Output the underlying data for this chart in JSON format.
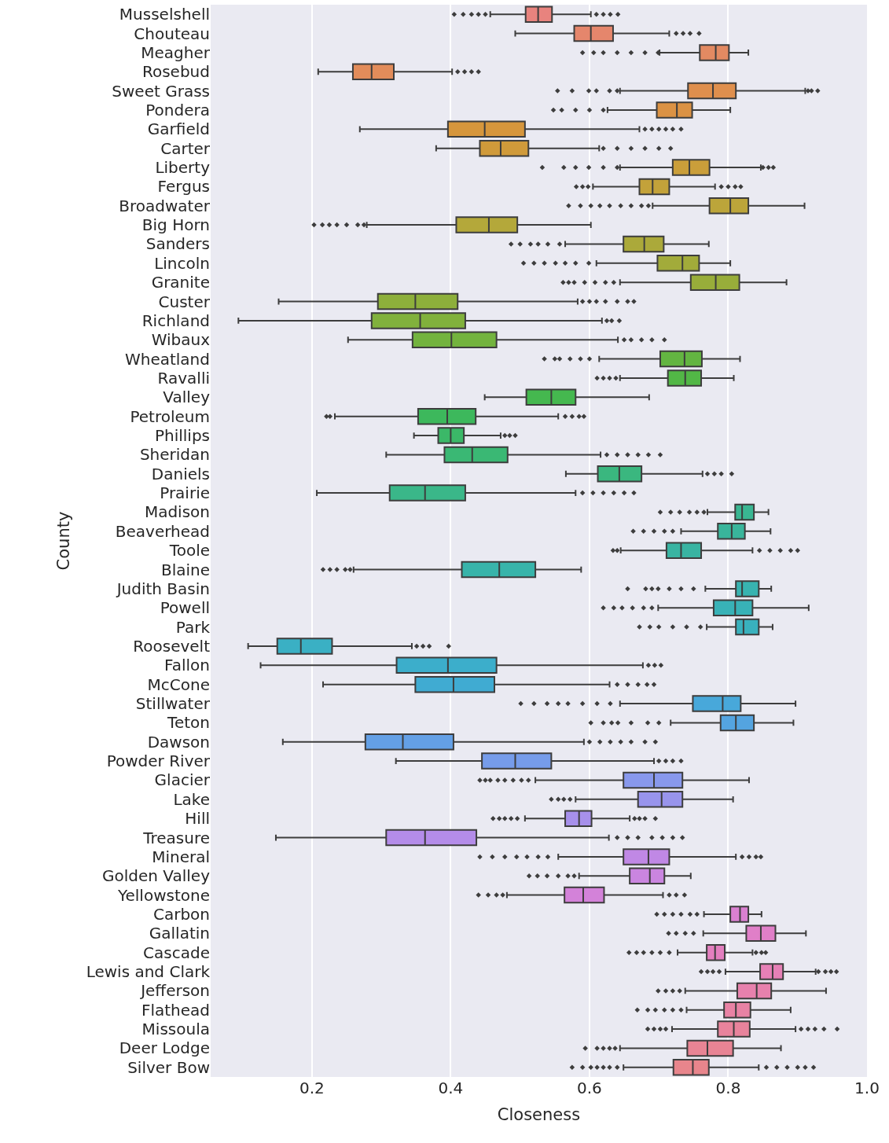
{
  "chart_data": {
    "type": "box",
    "orientation": "horizontal",
    "xlabel": "Closeness",
    "ylabel": "County",
    "categories": [
      "Musselshell",
      "Chouteau",
      "Meagher",
      "Rosebud",
      "Sweet Grass",
      "Pondera",
      "Garfield",
      "Carter",
      "Liberty",
      "Fergus",
      "Broadwater",
      "Big Horn",
      "Sanders",
      "Lincoln",
      "Granite",
      "Custer",
      "Richland",
      "Wibaux",
      "Wheatland",
      "Ravalli",
      "Valley",
      "Petroleum",
      "Phillips",
      "Sheridan",
      "Daniels",
      "Prairie",
      "Madison",
      "Beaverhead",
      "Toole",
      "Blaine",
      "Judith Basin",
      "Powell",
      "Park",
      "Roosevelt",
      "Fallon",
      "McCone",
      "Stillwater",
      "Teton",
      "Dawson",
      "Powder River",
      "Glacier",
      "Lake",
      "Hill",
      "Treasure",
      "Mineral",
      "Golden Valley",
      "Yellowstone",
      "Carbon",
      "Gallatin",
      "Cascade",
      "Lewis and Clark",
      "Jefferson",
      "Flathead",
      "Missoula",
      "Deer Lodge",
      "Silver Bow"
    ],
    "colors": [
      "#e8837e",
      "#e5866c",
      "#e38a62",
      "#e28c5a",
      "#df8f4d",
      "#db9244",
      "#d6963c",
      "#d09a3a",
      "#ca9e3a",
      "#c3a23a",
      "#bca53a",
      "#b4a83a",
      "#aba93a",
      "#a2ab3a",
      "#98ad3a",
      "#8daf3b",
      "#81b13c",
      "#73b33e",
      "#63b541",
      "#52b746",
      "#45b84f",
      "#3db85c",
      "#3bb868",
      "#3ab874",
      "#3ab77f",
      "#3ab789",
      "#39b692",
      "#39b59b",
      "#39b4a2",
      "#38b4aa",
      "#38b3b0",
      "#38b2b7",
      "#39b1bd",
      "#3ab0c4",
      "#3caecb",
      "#40abd2",
      "#48a8da",
      "#54a4e0",
      "#64a0e6",
      "#769cea",
      "#8898ec",
      "#9894ec",
      "#a790eb",
      "#b48ce9",
      "#c088e5",
      "#ca85e0",
      "#d382d9",
      "#da80d1",
      "#e07fc8",
      "#e37fbf",
      "#e680b6",
      "#e781ad",
      "#e882a4",
      "#e8839c",
      "#e88494",
      "#e8858c"
    ],
    "boxes": [
      {
        "low": 0.457,
        "q1": 0.508,
        "median": 0.526,
        "q3": 0.546,
        "high": 0.602,
        "outliers": [
          0.405,
          0.418,
          0.43,
          0.44,
          0.45,
          0.61,
          0.62,
          0.63,
          0.641
        ]
      },
      {
        "low": 0.493,
        "q1": 0.578,
        "median": 0.602,
        "q3": 0.634,
        "high": 0.715,
        "outliers": [
          0.725,
          0.735,
          0.745,
          0.758
        ]
      },
      {
        "low": 0.701,
        "q1": 0.759,
        "median": 0.782,
        "q3": 0.801,
        "high": 0.829,
        "outliers": [
          0.59,
          0.606,
          0.62,
          0.64,
          0.66,
          0.68,
          0.699
        ]
      },
      {
        "low": 0.209,
        "q1": 0.259,
        "median": 0.286,
        "q3": 0.318,
        "high": 0.402,
        "outliers": [
          0.41,
          0.42,
          0.43,
          0.44
        ]
      },
      {
        "low": 0.644,
        "q1": 0.742,
        "median": 0.778,
        "q3": 0.811,
        "high": 0.911,
        "outliers": [
          0.554,
          0.575,
          0.599,
          0.61,
          0.629,
          0.64,
          0.915,
          0.92,
          0.929
        ]
      },
      {
        "low": 0.626,
        "q1": 0.697,
        "median": 0.726,
        "q3": 0.748,
        "high": 0.803,
        "outliers": [
          0.548,
          0.56,
          0.58,
          0.6,
          0.62
        ]
      },
      {
        "low": 0.269,
        "q1": 0.396,
        "median": 0.449,
        "q3": 0.507,
        "high": 0.672,
        "outliers": [
          0.68,
          0.69,
          0.7,
          0.71,
          0.72,
          0.732
        ]
      },
      {
        "low": 0.379,
        "q1": 0.442,
        "median": 0.472,
        "q3": 0.512,
        "high": 0.614,
        "outliers": [
          0.62,
          0.64,
          0.66,
          0.68,
          0.7,
          0.717
        ]
      },
      {
        "low": 0.644,
        "q1": 0.72,
        "median": 0.744,
        "q3": 0.773,
        "high": 0.847,
        "outliers": [
          0.532,
          0.563,
          0.58,
          0.599,
          0.62,
          0.64,
          0.85,
          0.858,
          0.865
        ]
      },
      {
        "low": 0.605,
        "q1": 0.672,
        "median": 0.691,
        "q3": 0.715,
        "high": 0.781,
        "outliers": [
          0.581,
          0.59,
          0.598,
          0.79,
          0.8,
          0.81,
          0.818
        ]
      },
      {
        "low": 0.691,
        "q1": 0.773,
        "median": 0.803,
        "q3": 0.829,
        "high": 0.91,
        "outliers": [
          0.57,
          0.587,
          0.602,
          0.615,
          0.629,
          0.645,
          0.66,
          0.675,
          0.685
        ]
      },
      {
        "low": 0.279,
        "q1": 0.408,
        "median": 0.455,
        "q3": 0.496,
        "high": 0.602,
        "outliers": [
          0.203,
          0.215,
          0.225,
          0.236,
          0.25,
          0.266,
          0.275
        ]
      },
      {
        "low": 0.565,
        "q1": 0.649,
        "median": 0.679,
        "q3": 0.707,
        "high": 0.772,
        "outliers": [
          0.487,
          0.5,
          0.515,
          0.526,
          0.54,
          0.557
        ]
      },
      {
        "low": 0.61,
        "q1": 0.698,
        "median": 0.734,
        "q3": 0.758,
        "high": 0.803,
        "outliers": [
          0.505,
          0.52,
          0.535,
          0.551,
          0.565,
          0.58,
          0.599
        ]
      },
      {
        "low": 0.644,
        "q1": 0.746,
        "median": 0.782,
        "q3": 0.816,
        "high": 0.884,
        "outliers": [
          0.562,
          0.57,
          0.578,
          0.593,
          0.608,
          0.623,
          0.635
        ]
      },
      {
        "low": 0.152,
        "q1": 0.295,
        "median": 0.349,
        "q3": 0.41,
        "high": 0.583,
        "outliers": [
          0.59,
          0.6,
          0.61,
          0.623,
          0.64,
          0.655,
          0.664
        ]
      },
      {
        "low": 0.094,
        "q1": 0.286,
        "median": 0.356,
        "q3": 0.421,
        "high": 0.618,
        "outliers": [
          0.625,
          0.632,
          0.643
        ]
      },
      {
        "low": 0.252,
        "q1": 0.345,
        "median": 0.401,
        "q3": 0.466,
        "high": 0.641,
        "outliers": [
          0.65,
          0.66,
          0.675,
          0.69,
          0.708
        ]
      },
      {
        "low": 0.614,
        "q1": 0.702,
        "median": 0.737,
        "q3": 0.762,
        "high": 0.817,
        "outliers": [
          0.535,
          0.55,
          0.557,
          0.572,
          0.587,
          0.6
        ]
      },
      {
        "low": 0.644,
        "q1": 0.713,
        "median": 0.738,
        "q3": 0.761,
        "high": 0.808,
        "outliers": [
          0.611,
          0.62,
          0.629,
          0.638
        ]
      },
      {
        "low": 0.449,
        "q1": 0.509,
        "median": 0.545,
        "q3": 0.58,
        "high": 0.686
      },
      {
        "low": 0.233,
        "q1": 0.353,
        "median": 0.395,
        "q3": 0.436,
        "high": 0.555,
        "outliers": [
          0.221,
          0.226,
          0.565,
          0.575,
          0.585,
          0.592
        ]
      },
      {
        "low": 0.347,
        "q1": 0.382,
        "median": 0.4,
        "q3": 0.419,
        "high": 0.472,
        "outliers": [
          0.478,
          0.485,
          0.493
        ]
      },
      {
        "low": 0.307,
        "q1": 0.391,
        "median": 0.431,
        "q3": 0.482,
        "high": 0.616,
        "outliers": [
          0.625,
          0.64,
          0.655,
          0.67,
          0.685,
          0.702
        ]
      },
      {
        "low": 0.566,
        "q1": 0.612,
        "median": 0.643,
        "q3": 0.675,
        "high": 0.763,
        "outliers": [
          0.77,
          0.78,
          0.79,
          0.805
        ]
      },
      {
        "low": 0.207,
        "q1": 0.312,
        "median": 0.363,
        "q3": 0.421,
        "high": 0.58,
        "outliers": [
          0.59,
          0.605,
          0.62,
          0.635,
          0.65,
          0.664
        ]
      },
      {
        "low": 0.77,
        "q1": 0.81,
        "median": 0.82,
        "q3": 0.837,
        "high": 0.858,
        "outliers": [
          0.702,
          0.717,
          0.73,
          0.744,
          0.755,
          0.765
        ]
      },
      {
        "low": 0.732,
        "q1": 0.785,
        "median": 0.805,
        "q3": 0.824,
        "high": 0.861,
        "outliers": [
          0.663,
          0.678,
          0.693,
          0.708,
          0.72
        ]
      },
      {
        "low": 0.645,
        "q1": 0.711,
        "median": 0.732,
        "q3": 0.761,
        "high": 0.835,
        "outliers": [
          0.634,
          0.64,
          0.845,
          0.86,
          0.875,
          0.89,
          0.9
        ]
      },
      {
        "low": 0.26,
        "q1": 0.416,
        "median": 0.47,
        "q3": 0.522,
        "high": 0.588,
        "outliers": [
          0.216,
          0.226,
          0.236,
          0.248,
          0.255
        ]
      },
      {
        "low": 0.767,
        "q1": 0.811,
        "median": 0.82,
        "q3": 0.844,
        "high": 0.862,
        "outliers": [
          0.655,
          0.681,
          0.69,
          0.699,
          0.715,
          0.732,
          0.75
        ]
      },
      {
        "low": 0.699,
        "q1": 0.779,
        "median": 0.81,
        "q3": 0.835,
        "high": 0.916,
        "outliers": [
          0.62,
          0.635,
          0.647,
          0.662,
          0.678,
          0.69
        ]
      },
      {
        "low": 0.769,
        "q1": 0.811,
        "median": 0.822,
        "q3": 0.844,
        "high": 0.864,
        "outliers": [
          0.672,
          0.687,
          0.7,
          0.72,
          0.74,
          0.76
        ]
      },
      {
        "low": 0.108,
        "q1": 0.15,
        "median": 0.184,
        "q3": 0.229,
        "high": 0.344,
        "outliers": [
          0.351,
          0.36,
          0.369,
          0.397
        ]
      },
      {
        "low": 0.126,
        "q1": 0.322,
        "median": 0.396,
        "q3": 0.466,
        "high": 0.677,
        "outliers": [
          0.685,
          0.694,
          0.703
        ]
      },
      {
        "low": 0.216,
        "q1": 0.349,
        "median": 0.404,
        "q3": 0.463,
        "high": 0.629,
        "outliers": [
          0.64,
          0.655,
          0.67,
          0.683,
          0.693
        ]
      },
      {
        "low": 0.644,
        "q1": 0.749,
        "median": 0.792,
        "q3": 0.818,
        "high": 0.897,
        "outliers": [
          0.501,
          0.52,
          0.539,
          0.555,
          0.569,
          0.59,
          0.611,
          0.63
        ]
      },
      {
        "low": 0.717,
        "q1": 0.789,
        "median": 0.811,
        "q3": 0.837,
        "high": 0.894,
        "outliers": [
          0.602,
          0.62,
          0.632,
          0.641,
          0.66,
          0.684,
          0.7
        ]
      },
      {
        "low": 0.158,
        "q1": 0.277,
        "median": 0.331,
        "q3": 0.404,
        "high": 0.592,
        "outliers": [
          0.6,
          0.615,
          0.63,
          0.645,
          0.66,
          0.68,
          0.695
        ]
      },
      {
        "low": 0.321,
        "q1": 0.445,
        "median": 0.493,
        "q3": 0.545,
        "high": 0.693,
        "outliers": [
          0.7,
          0.71,
          0.72,
          0.732
        ]
      },
      {
        "low": 0.522,
        "q1": 0.649,
        "median": 0.693,
        "q3": 0.734,
        "high": 0.83,
        "outliers": [
          0.442,
          0.45,
          0.457,
          0.468,
          0.478,
          0.49,
          0.502,
          0.512
        ]
      },
      {
        "low": 0.58,
        "q1": 0.67,
        "median": 0.704,
        "q3": 0.734,
        "high": 0.807,
        "outliers": [
          0.545,
          0.555,
          0.563,
          0.572
        ]
      },
      {
        "low": 0.507,
        "q1": 0.565,
        "median": 0.585,
        "q3": 0.603,
        "high": 0.658,
        "outliers": [
          0.461,
          0.47,
          0.478,
          0.487,
          0.496,
          0.665,
          0.672,
          0.68,
          0.695
        ]
      },
      {
        "low": 0.148,
        "q1": 0.307,
        "median": 0.363,
        "q3": 0.437,
        "high": 0.628,
        "outliers": [
          0.64,
          0.655,
          0.67,
          0.69,
          0.705,
          0.72,
          0.734
        ]
      },
      {
        "low": 0.555,
        "q1": 0.649,
        "median": 0.685,
        "q3": 0.715,
        "high": 0.811,
        "outliers": [
          0.442,
          0.46,
          0.478,
          0.495,
          0.51,
          0.526,
          0.54,
          0.82,
          0.83,
          0.84,
          0.847
        ]
      },
      {
        "low": 0.585,
        "q1": 0.658,
        "median": 0.687,
        "q3": 0.708,
        "high": 0.746,
        "outliers": [
          0.513,
          0.525,
          0.539,
          0.555,
          0.569,
          0.578
        ]
      },
      {
        "low": 0.481,
        "q1": 0.564,
        "median": 0.591,
        "q3": 0.621,
        "high": 0.706,
        "outliers": [
          0.44,
          0.454,
          0.466,
          0.475,
          0.715,
          0.725,
          0.737
        ]
      },
      {
        "low": 0.765,
        "q1": 0.803,
        "median": 0.817,
        "q3": 0.829,
        "high": 0.848,
        "outliers": [
          0.697,
          0.708,
          0.72,
          0.732,
          0.745,
          0.755
        ]
      },
      {
        "low": 0.764,
        "q1": 0.826,
        "median": 0.847,
        "q3": 0.868,
        "high": 0.912,
        "outliers": [
          0.714,
          0.725,
          0.738,
          0.75
        ]
      },
      {
        "low": 0.727,
        "q1": 0.769,
        "median": 0.781,
        "q3": 0.795,
        "high": 0.835,
        "outliers": [
          0.657,
          0.668,
          0.678,
          0.69,
          0.702,
          0.715,
          0.84,
          0.848,
          0.854
        ]
      },
      {
        "low": 0.796,
        "q1": 0.846,
        "median": 0.864,
        "q3": 0.879,
        "high": 0.926,
        "outliers": [
          0.761,
          0.77,
          0.778,
          0.787,
          0.93,
          0.94,
          0.948,
          0.956
        ]
      },
      {
        "low": 0.738,
        "q1": 0.813,
        "median": 0.841,
        "q3": 0.862,
        "high": 0.941,
        "outliers": [
          0.699,
          0.71,
          0.72,
          0.73
        ]
      },
      {
        "low": 0.74,
        "q1": 0.794,
        "median": 0.811,
        "q3": 0.832,
        "high": 0.89,
        "outliers": [
          0.669,
          0.684,
          0.695,
          0.708,
          0.72,
          0.732
        ]
      },
      {
        "low": 0.719,
        "q1": 0.785,
        "median": 0.808,
        "q3": 0.831,
        "high": 0.897,
        "outliers": [
          0.684,
          0.693,
          0.702,
          0.71,
          0.905,
          0.915,
          0.925,
          0.938,
          0.957
        ]
      },
      {
        "low": 0.644,
        "q1": 0.741,
        "median": 0.77,
        "q3": 0.807,
        "high": 0.876,
        "outliers": [
          0.594,
          0.611,
          0.62,
          0.629,
          0.637
        ]
      },
      {
        "low": 0.649,
        "q1": 0.721,
        "median": 0.749,
        "q3": 0.772,
        "high": 0.844,
        "outliers": [
          0.575,
          0.59,
          0.602,
          0.611,
          0.62,
          0.629,
          0.64,
          0.855,
          0.87,
          0.885,
          0.9,
          0.911,
          0.923
        ]
      }
    ],
    "xlim": [
      0.054,
      1.0
    ],
    "xticks": [
      0.2,
      0.4,
      0.6,
      0.8,
      {
        "value": 1.0,
        "label": "1.0"
      }
    ],
    "grid": "x",
    "marker": "diamond"
  }
}
